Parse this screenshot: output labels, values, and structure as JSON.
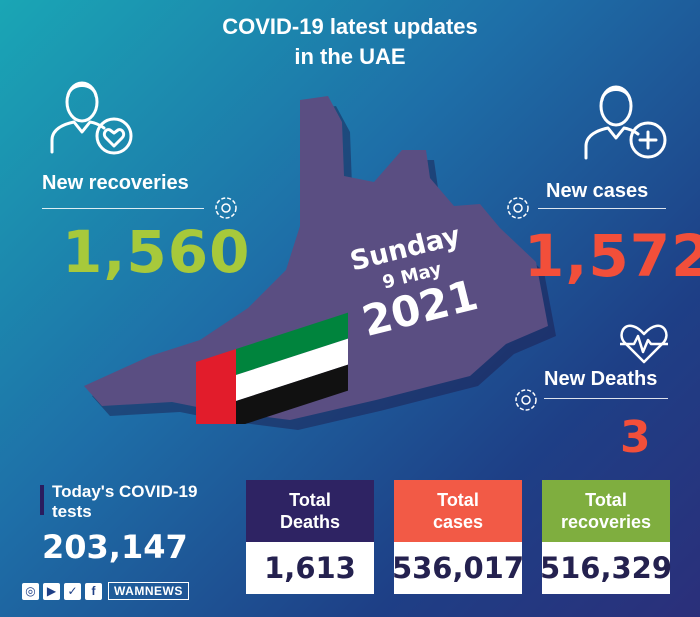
{
  "title": {
    "line1": "COVID-19 latest updates",
    "line2": "in the UAE"
  },
  "recoveries": {
    "label": "New recoveries",
    "value": "1,560",
    "icon": "person-heart-icon"
  },
  "cases": {
    "label": "New cases",
    "value": "1,572",
    "icon": "person-plus-icon"
  },
  "deaths": {
    "label": "New Deaths",
    "value": "3",
    "icon": "heartbeat-icon"
  },
  "date": {
    "day": "Sunday",
    "day_month": "9 May",
    "year": "2021"
  },
  "tests": {
    "label_line1": "Today's COVID-19",
    "label_line2": "tests",
    "value": "203,147"
  },
  "totals": [
    {
      "label_line1": "Total",
      "label_line2": "Deaths",
      "value": "1,613",
      "color": "#2e2363"
    },
    {
      "label_line1": "Total",
      "label_line2": "cases",
      "value": "536,017",
      "color": "#f25a46"
    },
    {
      "label_line1": "Total",
      "label_line2": "recoveries",
      "value": "516,329",
      "color": "#7fae3f"
    }
  ],
  "footer": {
    "brand": "WAMNEWS",
    "social_icons": [
      "instagram-icon",
      "youtube-icon",
      "twitter-icon",
      "facebook-icon"
    ]
  },
  "colors": {
    "green": "#a7c93b",
    "red": "#f24f3a",
    "map": "#5a4e82",
    "flag_green": "#00843d",
    "flag_red": "#e21c2b"
  }
}
